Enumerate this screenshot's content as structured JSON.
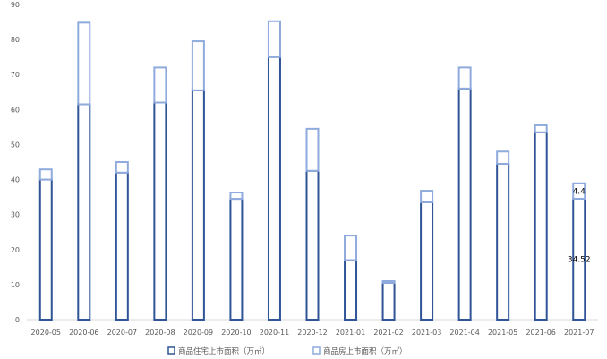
{
  "chart_data": {
    "type": "bar",
    "stacked": true,
    "title": "",
    "xlabel": "",
    "ylabel": "",
    "ylim": [
      0,
      90
    ],
    "yticks": [
      0,
      10,
      20,
      30,
      40,
      50,
      60,
      70,
      80,
      90
    ],
    "grid": false,
    "legend_position": "bottom",
    "categories": [
      "2020-05",
      "2020-06",
      "2020-07",
      "2020-08",
      "2020-09",
      "2020-10",
      "2020-11",
      "2020-12",
      "2021-01",
      "2021-02",
      "2021-03",
      "2021-04",
      "2021-05",
      "2021-06",
      "2021-07"
    ],
    "series": [
      {
        "name": "商品住宅上市面积（万㎡）",
        "color": "#2F5597",
        "values": [
          40,
          61.5,
          42,
          62,
          65.5,
          34.5,
          75,
          42.5,
          17,
          10.5,
          33.5,
          66,
          44.5,
          53.5,
          34.52
        ]
      },
      {
        "name": "商品房上市面积（万㎡）",
        "color": "#8FAADC",
        "values": [
          2.9,
          23.3,
          3,
          10,
          14,
          1.8,
          10.2,
          12,
          7,
          0.5,
          3.3,
          6,
          3.5,
          2,
          4.4
        ]
      }
    ],
    "data_labels": [
      {
        "category": "2021-07",
        "series": 0,
        "text": "34.52"
      },
      {
        "category": "2021-07",
        "series": 1,
        "text": "4.4"
      }
    ]
  }
}
